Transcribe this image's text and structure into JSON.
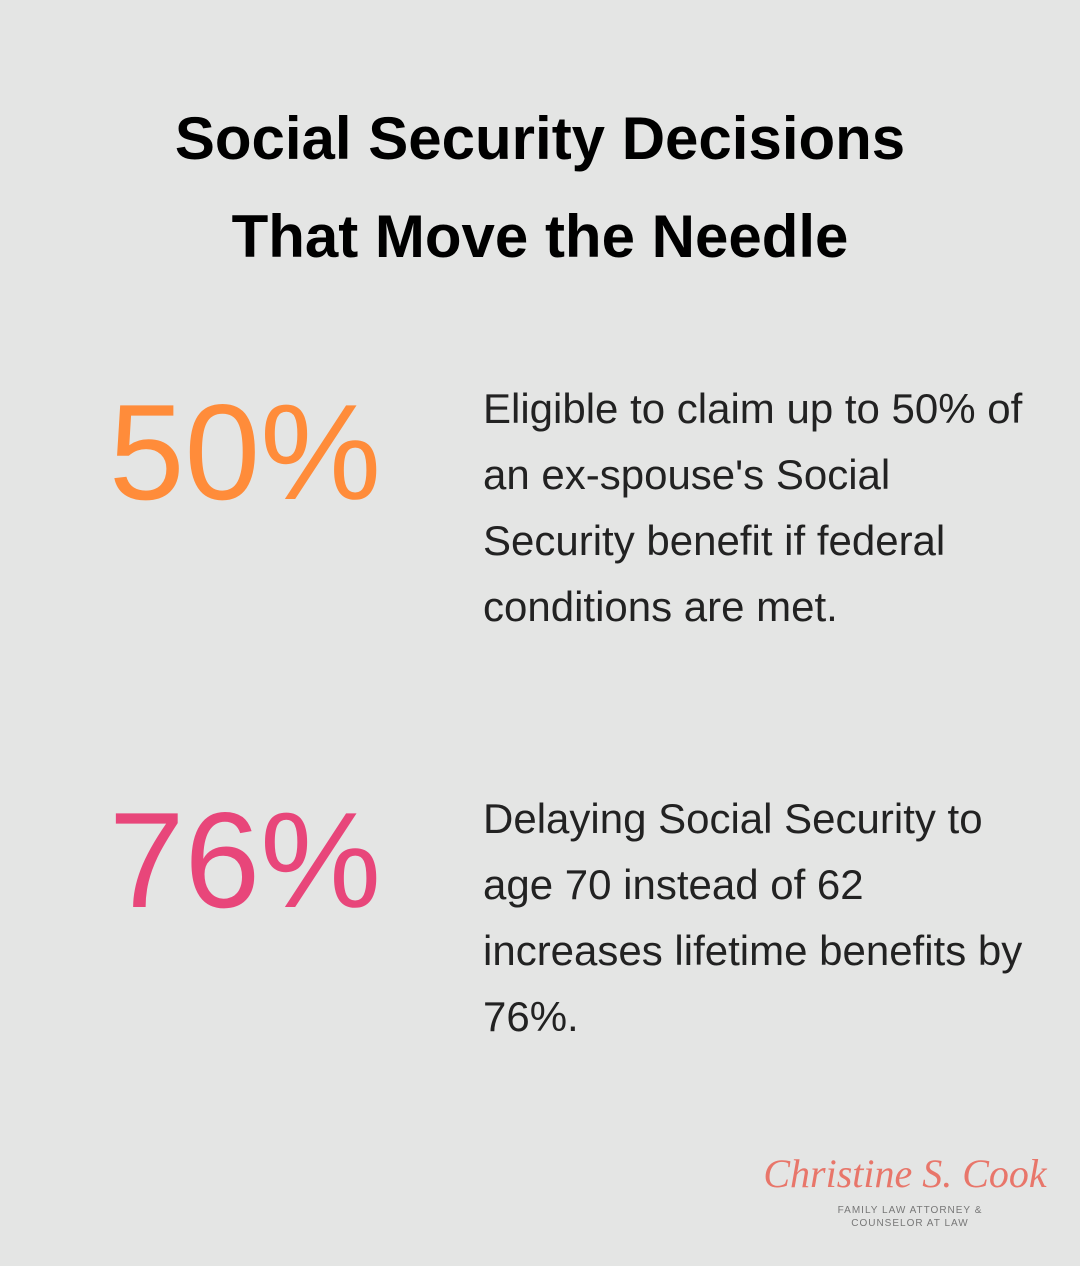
{
  "header": {
    "title_lines": [
      "Social Security Decisions",
      "That Move the Needle"
    ]
  },
  "stats": [
    {
      "figure": "50%",
      "color": "#ff8c3a",
      "description": "Eligible to claim up to 50% of an ex-spouse's Social Security benefit if federal conditions are met."
    },
    {
      "figure": "76%",
      "color": "#e8467a",
      "description": "Delaying Social Security to age 70 instead of 62 increases lifetime benefits by 76%."
    }
  ],
  "logo": {
    "name": "Christine S. Cook",
    "tagline_lines": [
      "FAMILY LAW ATTORNEY &",
      "COUNSELOR AT LAW"
    ]
  }
}
